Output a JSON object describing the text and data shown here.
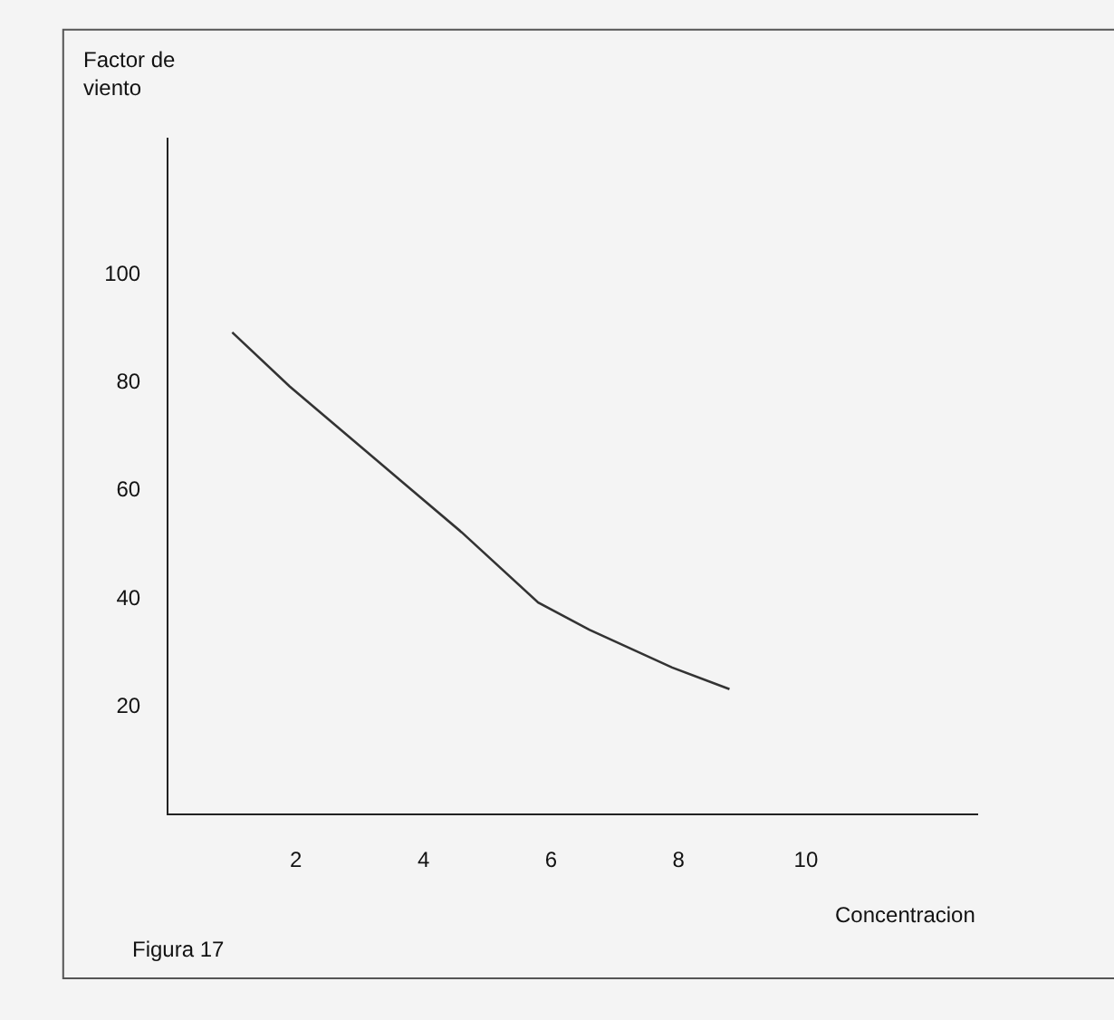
{
  "chart_data": {
    "type": "line",
    "xlabel": "Concentracion",
    "ylabel": "Factor de\nviento",
    "annotations": [
      "Figura 17"
    ],
    "x": [
      1.0,
      1.9,
      3.7,
      4.6,
      5.8,
      6.6,
      7.9,
      8.8
    ],
    "series": [
      {
        "color": "#333333",
        "values": [
          89,
          79,
          61,
          52,
          39,
          34,
          27,
          23
        ]
      }
    ],
    "xlim": [
      0,
      12.7
    ],
    "ylim": [
      0,
      125
    ],
    "xticks": [
      2,
      4,
      6,
      8,
      10
    ],
    "yticks": [
      20,
      40,
      60,
      80,
      100
    ],
    "grid": false,
    "marker": "none",
    "line_style": "solid"
  }
}
